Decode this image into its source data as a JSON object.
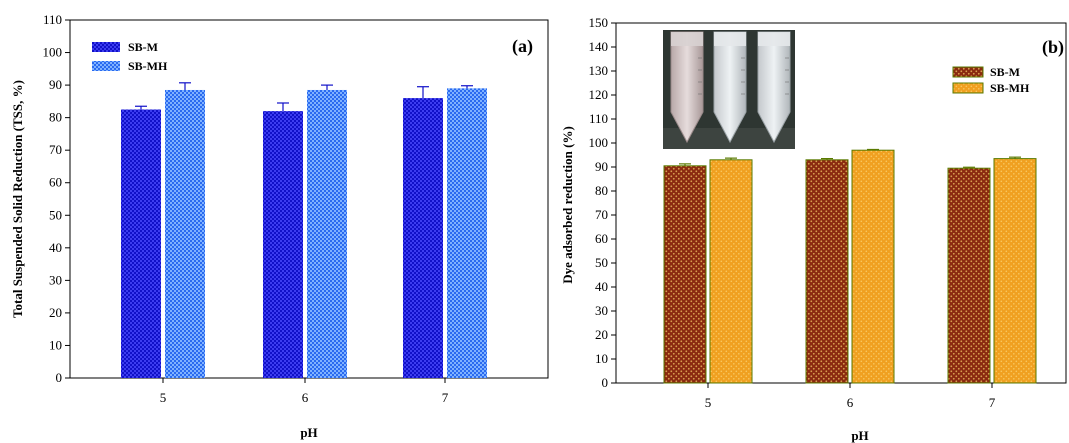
{
  "colors": {
    "sb_m_a": "#1010c8",
    "sb_m_a_check": "#3c3cf0",
    "sb_mh_a": "#2a6af0",
    "sb_mh_a_check": "#7fb2ff",
    "sb_m_b": "#8a2a10",
    "sb_m_b_dot": "#d8a050",
    "sb_mh_b": "#f0a020",
    "sb_mh_b_dot": "#f8c860",
    "bar_edge_b": "#5a7a00"
  },
  "chart_data": [
    {
      "type": "bar",
      "panel_label": "(a)",
      "categories": [
        "5",
        "6",
        "7"
      ],
      "xlabel": "pH",
      "ylabel": "Total Suspended Solid Reduction (TSS, %)",
      "ylim": [
        0,
        110
      ],
      "yticks": [
        0,
        10,
        20,
        30,
        40,
        50,
        60,
        70,
        80,
        90,
        100,
        110
      ],
      "legend_position": "top-left",
      "series": [
        {
          "name": "SB-M",
          "values": [
            82.5,
            82.0,
            86.0
          ],
          "errors": [
            1.0,
            2.5,
            3.5
          ]
        },
        {
          "name": "SB-MH",
          "values": [
            88.5,
            88.5,
            89.0
          ],
          "errors": [
            2.2,
            1.5,
            0.8
          ]
        }
      ]
    },
    {
      "type": "bar",
      "panel_label": "(b)",
      "categories": [
        "5",
        "6",
        "7"
      ],
      "xlabel": "pH",
      "ylabel": "Dye adsorbed reduction (%)",
      "ylim": [
        0,
        150
      ],
      "yticks": [
        0,
        10,
        20,
        30,
        40,
        50,
        60,
        70,
        80,
        90,
        100,
        110,
        120,
        130,
        140,
        150
      ],
      "legend_position": "top-right",
      "inset": "photo of three tubes",
      "series": [
        {
          "name": "SB-M",
          "values": [
            90.5,
            93.0,
            89.5
          ],
          "errors": [
            0.8,
            0.5,
            0.4
          ]
        },
        {
          "name": "SB-MH",
          "values": [
            93.0,
            97.0,
            93.5
          ],
          "errors": [
            0.7,
            0.3,
            0.6
          ]
        }
      ]
    }
  ]
}
